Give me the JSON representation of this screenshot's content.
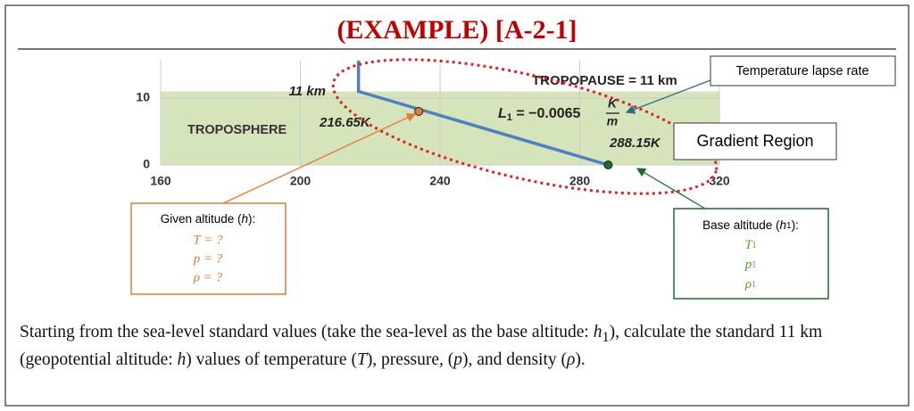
{
  "title": "(EXAMPLE) [A-2-1]",
  "chart_data": {
    "type": "line",
    "xlim": [
      160,
      320
    ],
    "ylim": [
      0,
      15.6
    ],
    "xticks": [
      160,
      200,
      240,
      280,
      320
    ],
    "yticks": [
      0,
      10
    ],
    "grid": true,
    "shaded_region": {
      "label": "TROPOSPHERE",
      "y": [
        0,
        11
      ],
      "color": "#d6e4bc"
    },
    "series": [
      {
        "color": "#4f81bd",
        "x": [
          288.15,
          216.65,
          216.65
        ],
        "values": [
          0,
          11,
          15.6
        ]
      }
    ],
    "points": [
      {
        "x": 233.9,
        "y": 8,
        "color": "#e07b39"
      },
      {
        "x": 288.15,
        "y": 0,
        "color": "#1e6b2e"
      }
    ],
    "annotations": {
      "tropopause_height": "11 km",
      "tropopause_temp": "216.65K",
      "tropopause": "TROPOPAUSE = 11 km",
      "sea_level_temp": "288.15K",
      "lapse_rate": [
        "L",
        "1",
        " = −0.0065",
        "K",
        "m"
      ]
    }
  },
  "callouts": {
    "lapse": "Temperature lapse rate",
    "region": "Gradient Region",
    "given": {
      "title": [
        "Given altitude (",
        "h",
        "):"
      ],
      "lines": [
        "T = ?",
        "p = ?",
        "ρ = ?"
      ]
    },
    "base": {
      "title": [
        "Base altitude (",
        "h",
        "1",
        "):"
      ],
      "lines": [
        [
          "T",
          "1"
        ],
        [
          "p",
          "1"
        ],
        [
          "ρ",
          "1"
        ]
      ]
    }
  },
  "text": [
    "Starting from the sea-level standard values (take the sea-level as the base altitude: ",
    "h",
    "1",
    "), calculate the standard 11 km (geopotential altitude: ",
    "h",
    ") values of temperature (",
    "T",
    "), pressure, (",
    "p",
    "), and density (",
    "ρ",
    ")."
  ]
}
